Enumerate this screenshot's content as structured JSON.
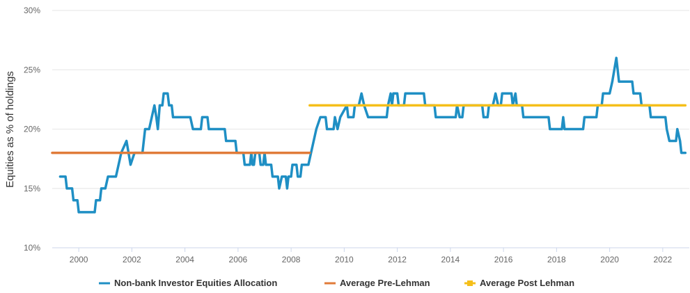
{
  "chart_data": {
    "type": "line",
    "title": "",
    "ylabel": "Equities as % of holdings",
    "xlabel": "",
    "xlim": [
      1999.0,
      2023.0
    ],
    "ylim": [
      10,
      30
    ],
    "y_ticks": [
      10,
      15,
      20,
      25,
      30
    ],
    "y_tick_labels": [
      "10%",
      "15%",
      "20%",
      "25%",
      "30%"
    ],
    "x_ticks": [
      2000,
      2002,
      2004,
      2006,
      2008,
      2010,
      2012,
      2014,
      2016,
      2018,
      2020,
      2022
    ],
    "x_tick_labels": [
      "2000",
      "2002",
      "2004",
      "2006",
      "2008",
      "2010",
      "2012",
      "2014",
      "2016",
      "2018",
      "2020",
      "2022"
    ],
    "grid": "horizontal",
    "legend_position": "bottom",
    "series": [
      {
        "name": "Non-bank Investor Equities Allocation",
        "color": "#1f8fc4",
        "points": [
          [
            1999.3,
            16
          ],
          [
            1999.5,
            16
          ],
          [
            1999.55,
            15
          ],
          [
            1999.75,
            15
          ],
          [
            1999.8,
            14
          ],
          [
            1999.95,
            14
          ],
          [
            2000.0,
            13
          ],
          [
            2000.6,
            13
          ],
          [
            2000.65,
            14
          ],
          [
            2000.8,
            14
          ],
          [
            2000.85,
            15
          ],
          [
            2001.0,
            15
          ],
          [
            2001.1,
            16
          ],
          [
            2001.4,
            16
          ],
          [
            2001.6,
            18
          ],
          [
            2001.8,
            19
          ],
          [
            2001.95,
            17
          ],
          [
            2002.1,
            18
          ],
          [
            2002.4,
            18
          ],
          [
            2002.5,
            20
          ],
          [
            2002.65,
            20
          ],
          [
            2002.75,
            21
          ],
          [
            2002.85,
            22
          ],
          [
            2002.92,
            21
          ],
          [
            2002.98,
            20
          ],
          [
            2003.05,
            22
          ],
          [
            2003.15,
            22
          ],
          [
            2003.2,
            23
          ],
          [
            2003.35,
            23
          ],
          [
            2003.4,
            22
          ],
          [
            2003.5,
            22
          ],
          [
            2003.55,
            21
          ],
          [
            2004.2,
            21
          ],
          [
            2004.3,
            20
          ],
          [
            2004.6,
            20
          ],
          [
            2004.65,
            21
          ],
          [
            2004.85,
            21
          ],
          [
            2004.9,
            20
          ],
          [
            2005.5,
            20
          ],
          [
            2005.55,
            19
          ],
          [
            2005.9,
            19
          ],
          [
            2005.95,
            18
          ],
          [
            2006.2,
            18
          ],
          [
            2006.25,
            17
          ],
          [
            2006.45,
            17
          ],
          [
            2006.5,
            18
          ],
          [
            2006.55,
            17
          ],
          [
            2006.6,
            17
          ],
          [
            2006.65,
            18
          ],
          [
            2006.8,
            18
          ],
          [
            2006.85,
            17
          ],
          [
            2006.95,
            17
          ],
          [
            2007.0,
            18
          ],
          [
            2007.05,
            17
          ],
          [
            2007.25,
            17
          ],
          [
            2007.3,
            16
          ],
          [
            2007.5,
            16
          ],
          [
            2007.55,
            15
          ],
          [
            2007.65,
            16
          ],
          [
            2007.8,
            16
          ],
          [
            2007.85,
            15
          ],
          [
            2007.9,
            16
          ],
          [
            2008.0,
            16
          ],
          [
            2008.05,
            17
          ],
          [
            2008.2,
            17
          ],
          [
            2008.25,
            16
          ],
          [
            2008.35,
            16
          ],
          [
            2008.4,
            17
          ],
          [
            2008.65,
            17
          ],
          [
            2008.75,
            18
          ],
          [
            2008.95,
            20
          ],
          [
            2009.1,
            21
          ],
          [
            2009.3,
            21
          ],
          [
            2009.35,
            20
          ],
          [
            2009.6,
            20
          ],
          [
            2009.65,
            21
          ],
          [
            2009.75,
            20
          ],
          [
            2009.85,
            21
          ],
          [
            2010.1,
            22
          ],
          [
            2010.15,
            21
          ],
          [
            2010.35,
            21
          ],
          [
            2010.4,
            22
          ],
          [
            2010.55,
            22
          ],
          [
            2010.65,
            23
          ],
          [
            2010.75,
            22
          ],
          [
            2010.9,
            21
          ],
          [
            2011.6,
            21
          ],
          [
            2011.65,
            22
          ],
          [
            2011.75,
            23
          ],
          [
            2011.8,
            22
          ],
          [
            2011.85,
            23
          ],
          [
            2012.0,
            23
          ],
          [
            2012.05,
            22
          ],
          [
            2012.25,
            22
          ],
          [
            2012.3,
            23
          ],
          [
            2013.0,
            23
          ],
          [
            2013.05,
            22
          ],
          [
            2013.4,
            22
          ],
          [
            2013.45,
            21
          ],
          [
            2014.2,
            21
          ],
          [
            2014.25,
            22
          ],
          [
            2014.35,
            21
          ],
          [
            2014.45,
            21
          ],
          [
            2014.5,
            22
          ],
          [
            2015.2,
            22
          ],
          [
            2015.25,
            21
          ],
          [
            2015.4,
            21
          ],
          [
            2015.45,
            22
          ],
          [
            2015.6,
            22
          ],
          [
            2015.7,
            23
          ],
          [
            2015.8,
            22
          ],
          [
            2015.9,
            22
          ],
          [
            2015.95,
            23
          ],
          [
            2016.3,
            23
          ],
          [
            2016.35,
            22
          ],
          [
            2016.45,
            23
          ],
          [
            2016.5,
            22
          ],
          [
            2016.7,
            22
          ],
          [
            2016.75,
            21
          ],
          [
            2017.7,
            21
          ],
          [
            2017.75,
            20
          ],
          [
            2018.2,
            20
          ],
          [
            2018.25,
            21
          ],
          [
            2018.3,
            20
          ],
          [
            2019.0,
            20
          ],
          [
            2019.05,
            21
          ],
          [
            2019.5,
            21
          ],
          [
            2019.55,
            22
          ],
          [
            2019.7,
            22
          ],
          [
            2019.75,
            23
          ],
          [
            2020.0,
            23
          ],
          [
            2020.1,
            24
          ],
          [
            2020.25,
            26
          ],
          [
            2020.35,
            24
          ],
          [
            2020.85,
            24
          ],
          [
            2020.9,
            23
          ],
          [
            2021.15,
            23
          ],
          [
            2021.2,
            22
          ],
          [
            2021.5,
            22
          ],
          [
            2021.55,
            21
          ],
          [
            2022.1,
            21
          ],
          [
            2022.15,
            20
          ],
          [
            2022.25,
            19
          ],
          [
            2022.5,
            19
          ],
          [
            2022.55,
            20
          ],
          [
            2022.65,
            19
          ],
          [
            2022.7,
            18
          ],
          [
            2022.85,
            18
          ]
        ]
      },
      {
        "name": "Average Pre-Lehman",
        "color": "#e07b39",
        "points": [
          [
            1999.0,
            18
          ],
          [
            2008.7,
            18
          ]
        ]
      },
      {
        "name": "Average Post Lehman",
        "color": "#f5bf1a",
        "points": [
          [
            2008.7,
            22
          ],
          [
            2022.85,
            22
          ]
        ]
      }
    ]
  }
}
